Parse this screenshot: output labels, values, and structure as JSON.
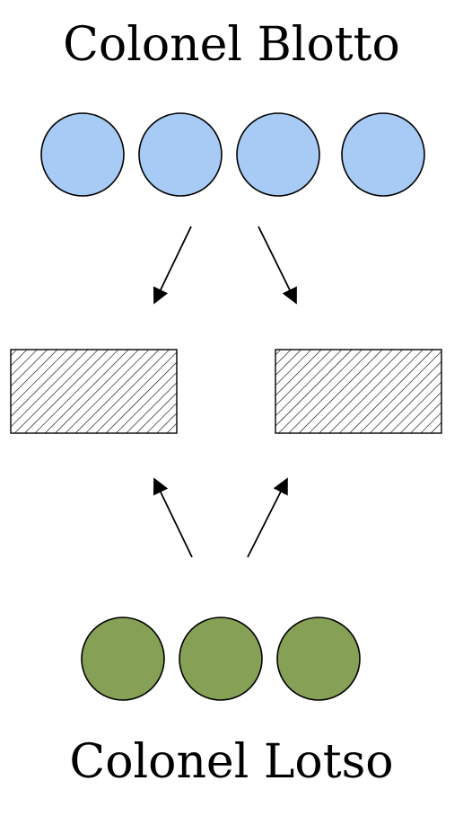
{
  "diagram": {
    "top_player": {
      "name": "Colonel Blotto",
      "troop_count": 4,
      "troop_color": "#a8cbf5"
    },
    "bottom_player": {
      "name": "Colonel Lotso",
      "troop_count": 3,
      "troop_color": "#86a055"
    },
    "battlefields": {
      "count": 2
    },
    "colors": {
      "outline": "#000000",
      "hatch": "#000000",
      "background": "#ffffff"
    }
  }
}
